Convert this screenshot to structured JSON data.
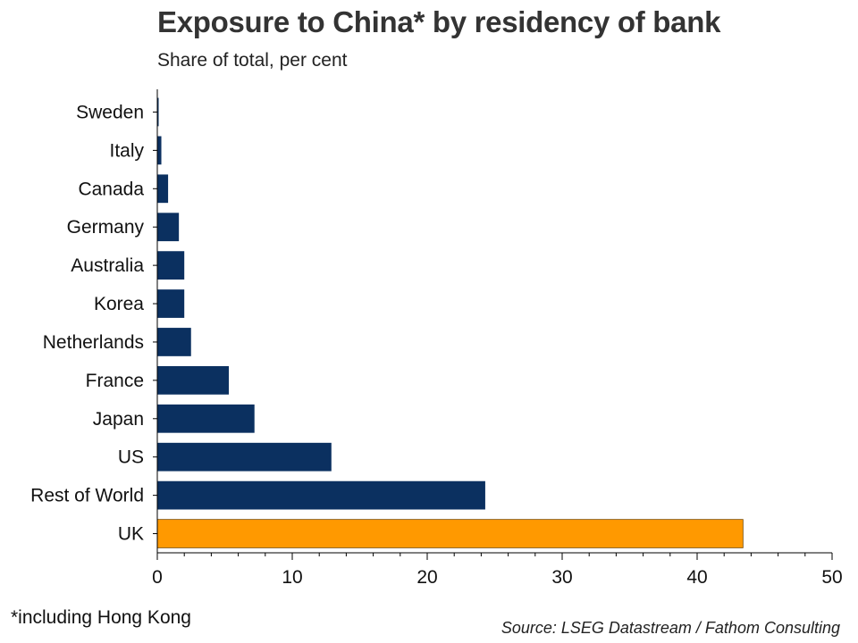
{
  "header": {
    "title": "Exposure to China* by residency of bank",
    "subtitle": "Share of total, per cent"
  },
  "footer": {
    "footnote": "*including Hong Kong",
    "source": "Source: LSEG Datastream / Fathom Consulting"
  },
  "colors": {
    "default_bar": "#0b3060",
    "highlight_bar": "#ff9900",
    "axis": "#000000"
  },
  "chart_data": {
    "type": "bar",
    "orientation": "horizontal",
    "title": "Exposure to China* by residency of bank",
    "subtitle": "Share of total, per cent",
    "categories": [
      "Sweden",
      "Italy",
      "Canada",
      "Germany",
      "Australia",
      "Korea",
      "Netherlands",
      "France",
      "Japan",
      "US",
      "Rest of World",
      "UK"
    ],
    "values": [
      0.1,
      0.3,
      0.8,
      1.6,
      2.0,
      2.0,
      2.5,
      5.3,
      7.2,
      12.9,
      24.3,
      43.4
    ],
    "highlight": "UK",
    "xlim": [
      0,
      50
    ],
    "xticks": [
      0,
      10,
      20,
      30,
      40,
      50
    ],
    "xlabel": "",
    "ylabel": "",
    "grid": false
  }
}
